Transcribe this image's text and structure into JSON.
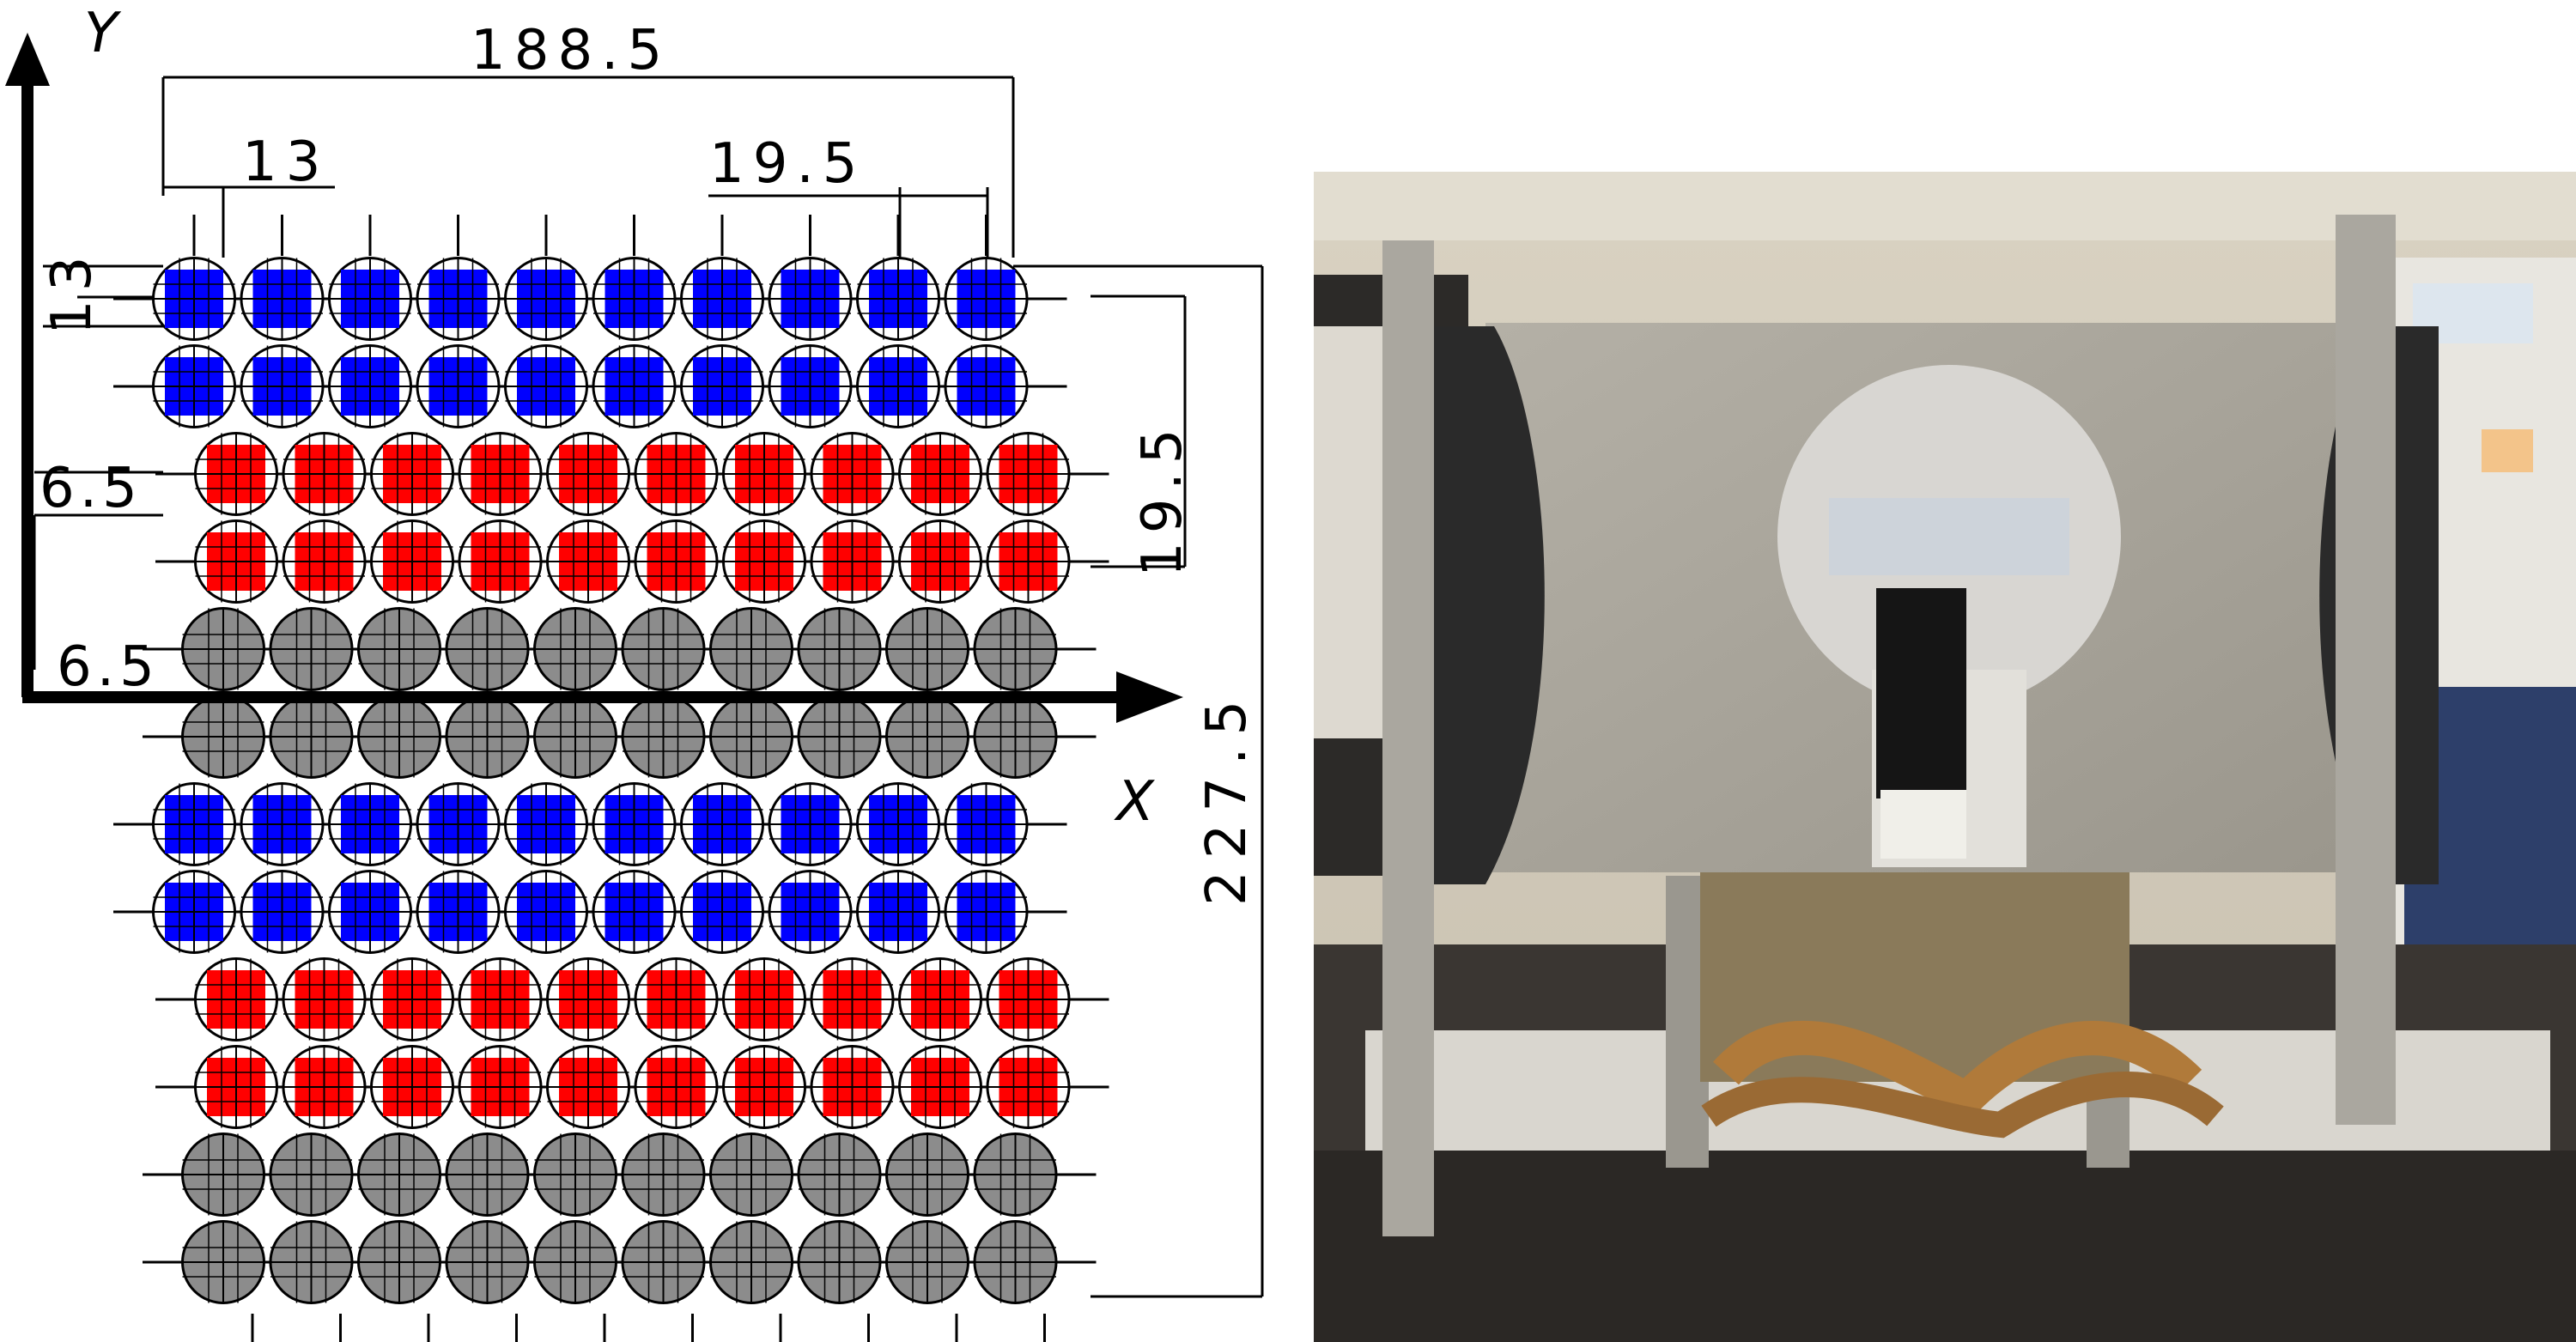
{
  "axes": {
    "x_label": "X",
    "y_label": "Y"
  },
  "dimensions": {
    "overall_width": "188.5",
    "pitch_small": "13",
    "pitch_large": "19.5",
    "row_spacing_small": "13",
    "row_offset": "6.5",
    "row_spacing_large": "19.5",
    "axis_offset": "6.5",
    "overall_height": "227.5"
  },
  "grid": {
    "columns": 10,
    "rows": [
      "blue",
      "blue",
      "red",
      "red",
      "gray",
      "gray",
      "blue",
      "blue",
      "red",
      "red",
      "gray",
      "gray"
    ]
  },
  "colors": {
    "blue": "#0000ff",
    "red": "#ff0000",
    "gray": "#8c8c8c",
    "line": "#000000"
  }
}
